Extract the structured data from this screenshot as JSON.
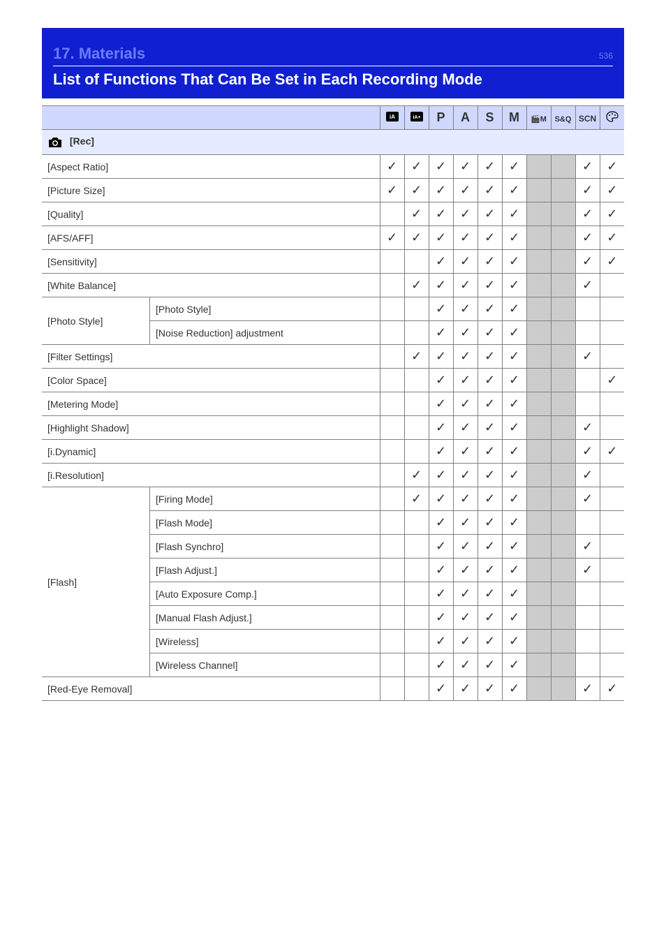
{
  "header": {
    "section": "17. Materials",
    "page_no": "536",
    "title": "List of Functions That Can Be Set in Each Recording Mode"
  },
  "modes": [
    "iA",
    "iA+",
    "P",
    "A",
    "S",
    "M",
    "MovM",
    "S&Q",
    "SCN",
    "Art"
  ],
  "section_label": "[Rec]",
  "rows": [
    {
      "label": "[Aspect Ratio]",
      "cells": [
        "c",
        "c",
        "c",
        "c",
        "c",
        "c",
        "n",
        "n",
        "c",
        "c"
      ]
    },
    {
      "label": "[Picture Size]",
      "cells": [
        "c",
        "c",
        "c",
        "c",
        "c",
        "c",
        "n",
        "n",
        "c",
        "c"
      ]
    },
    {
      "label": "[Quality]",
      "cells": [
        "",
        "c",
        "c",
        "c",
        "c",
        "c",
        "n",
        "n",
        "c",
        "c"
      ]
    },
    {
      "label": "[AFS/AFF]",
      "cells": [
        "c",
        "c",
        "c",
        "c",
        "c",
        "c",
        "n",
        "n",
        "c",
        "c"
      ]
    },
    {
      "label": "[Sensitivity]",
      "cells": [
        "",
        "",
        "c",
        "c",
        "c",
        "c",
        "n",
        "n",
        "c",
        "c"
      ]
    },
    {
      "label": "[White Balance]",
      "cells": [
        "",
        "c",
        "c",
        "c",
        "c",
        "c",
        "n",
        "n",
        "c",
        ""
      ]
    },
    {
      "label": "[Photo Style]",
      "sub": "[Photo Style]",
      "cells": [
        "",
        "",
        "c",
        "c",
        "c",
        "c",
        "n",
        "n",
        "",
        ""
      ]
    },
    {
      "label": "",
      "sub": "[Noise Reduction] adjustment",
      "cells": [
        "",
        "",
        "c",
        "c",
        "c",
        "c",
        "n",
        "n",
        "",
        ""
      ]
    },
    {
      "label": "[Filter Settings]",
      "cells": [
        "",
        "c",
        "c",
        "c",
        "c",
        "c",
        "n",
        "n",
        "c",
        ""
      ]
    },
    {
      "label": "[Color Space]",
      "cells": [
        "",
        "",
        "c",
        "c",
        "c",
        "c",
        "n",
        "n",
        "",
        "c"
      ]
    },
    {
      "label": "[Metering Mode]",
      "cells": [
        "",
        "",
        "c",
        "c",
        "c",
        "c",
        "n",
        "n",
        "",
        ""
      ]
    },
    {
      "label": "[Highlight Shadow]",
      "cells": [
        "",
        "",
        "c",
        "c",
        "c",
        "c",
        "n",
        "n",
        "c",
        ""
      ]
    },
    {
      "label": "[i.Dynamic]",
      "cells": [
        "",
        "",
        "c",
        "c",
        "c",
        "c",
        "n",
        "n",
        "c",
        "c"
      ]
    },
    {
      "label": "[i.Resolution]",
      "cells": [
        "",
        "c",
        "c",
        "c",
        "c",
        "c",
        "n",
        "n",
        "c",
        ""
      ]
    },
    {
      "label": "[Flash]",
      "sub": "[Firing Mode]",
      "cells": [
        "",
        "c",
        "c",
        "c",
        "c",
        "c",
        "n",
        "n",
        "c",
        ""
      ]
    },
    {
      "label": "",
      "sub": "[Flash Mode]",
      "cells": [
        "",
        "",
        "c",
        "c",
        "c",
        "c",
        "n",
        "n",
        "",
        ""
      ]
    },
    {
      "label": "",
      "sub": "[Flash Synchro]",
      "cells": [
        "",
        "",
        "c",
        "c",
        "c",
        "c",
        "n",
        "n",
        "c",
        ""
      ]
    },
    {
      "label": "",
      "sub": "[Flash Adjust.]",
      "cells": [
        "",
        "",
        "c",
        "c",
        "c",
        "c",
        "n",
        "n",
        "c",
        ""
      ]
    },
    {
      "label": "",
      "sub": "[Auto Exposure Comp.]",
      "cells": [
        "",
        "",
        "c",
        "c",
        "c",
        "c",
        "n",
        "n",
        "",
        ""
      ]
    },
    {
      "label": "",
      "sub": "[Manual Flash Adjust.]",
      "cells": [
        "",
        "",
        "c",
        "c",
        "c",
        "c",
        "n",
        "n",
        "",
        ""
      ]
    },
    {
      "label": "",
      "sub": "[Wireless]",
      "cells": [
        "",
        "",
        "c",
        "c",
        "c",
        "c",
        "n",
        "n",
        "",
        ""
      ]
    },
    {
      "label": "",
      "sub": "[Wireless Channel]",
      "cells": [
        "",
        "",
        "c",
        "c",
        "c",
        "c",
        "n",
        "n",
        "",
        ""
      ]
    },
    {
      "label": "[Red-Eye Removal]",
      "cells": [
        "",
        "",
        "c",
        "c",
        "c",
        "c",
        "n",
        "n",
        "c",
        "c"
      ]
    }
  ]
}
